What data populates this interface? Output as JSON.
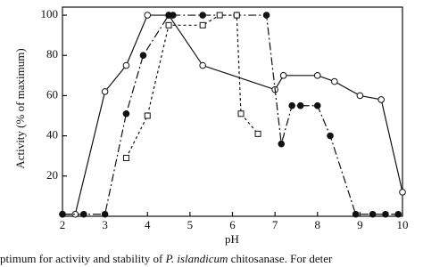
{
  "chart_data": {
    "type": "line",
    "x_label": "pH",
    "y_label": "Activity (% of maximum)",
    "xlim": [
      2,
      10
    ],
    "ylim": [
      0,
      104
    ],
    "xticks": [
      2,
      3,
      4,
      5,
      6,
      7,
      8,
      9,
      10
    ],
    "yticks": [
      20,
      40,
      60,
      80,
      100
    ],
    "series": [
      {
        "marker": "open-circle",
        "dash": "solid",
        "color": "#111111",
        "x": [
          2,
          2.3,
          3,
          3.5,
          4,
          4.5,
          5.3,
          7,
          7.2,
          8,
          8.4,
          9,
          9.5,
          10
        ],
        "values": [
          1,
          1,
          62,
          75,
          100,
          100,
          75,
          63,
          70,
          70,
          67,
          60,
          58,
          12
        ]
      },
      {
        "marker": "filled-circle",
        "dash": "dash-dot",
        "color": "#111111",
        "x": [
          2,
          2.5,
          3,
          3.5,
          3.9,
          4.5,
          4.6,
          5.3,
          6.1,
          6.8,
          7.15,
          7.4,
          7.6,
          8,
          8.3,
          8.9,
          9.3,
          9.6,
          9.9
        ],
        "values": [
          1,
          1,
          1,
          51,
          80,
          100,
          100,
          100,
          100,
          100,
          36,
          55,
          55,
          55,
          40,
          1,
          1,
          1,
          1
        ]
      },
      {
        "marker": "open-square",
        "dash": "dotted",
        "color": "#111111",
        "x": [
          3.5,
          4,
          4.5,
          5.3,
          5.7,
          6.1,
          6.2,
          6.6
        ],
        "values": [
          29,
          50,
          95,
          95,
          100,
          100,
          51,
          41
        ]
      }
    ]
  },
  "caption": [
    "ptimum for activity and stability of ",
    "P. islandicum",
    " chitosanase. For deter"
  ]
}
